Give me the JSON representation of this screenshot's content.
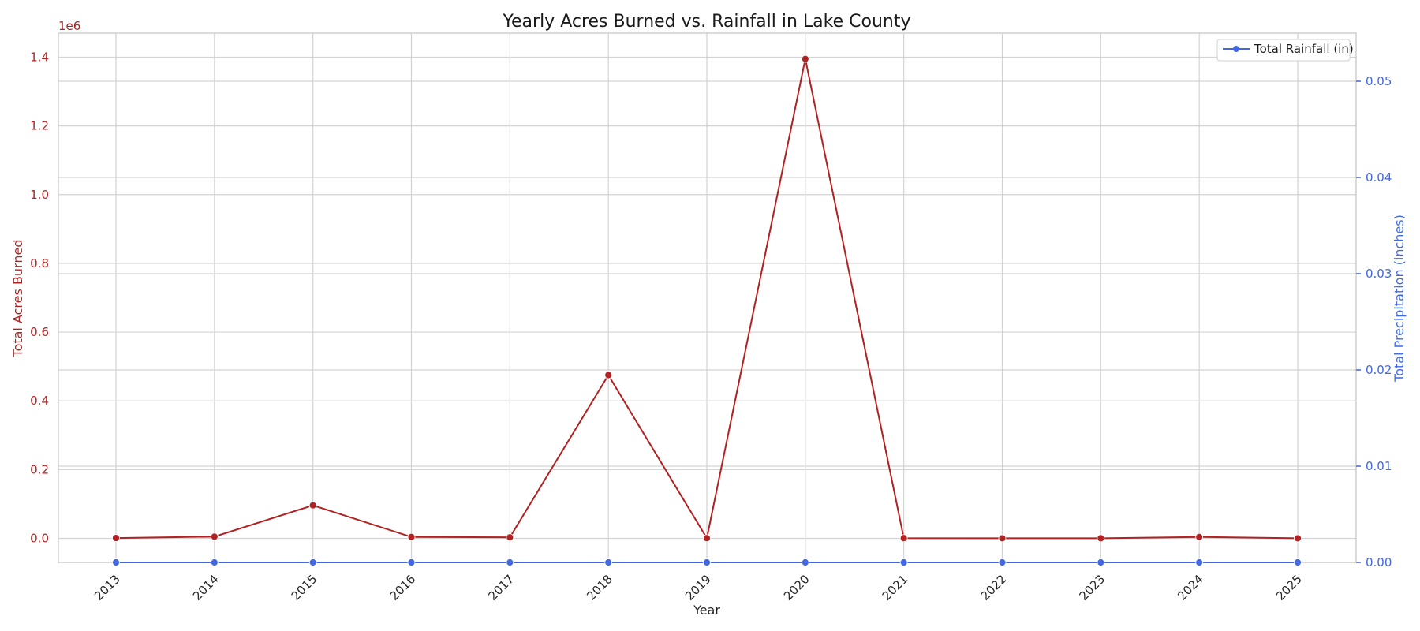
{
  "chart_data": {
    "type": "line",
    "title": "Yearly Acres Burned vs. Rainfall in Lake County",
    "xlabel": "Year",
    "ylabel_left": "Total Acres Burned",
    "ylabel_right": "Total Precipitation (inches)",
    "left_axis_offset_label": "1e6",
    "categories": [
      "2013",
      "2014",
      "2015",
      "2016",
      "2017",
      "2018",
      "2019",
      "2020",
      "2021",
      "2022",
      "2023",
      "2024",
      "2025"
    ],
    "ylim_left": [
      -70000,
      1470000
    ],
    "yticks_left": [
      0,
      200000,
      400000,
      600000,
      800000,
      1000000,
      1200000,
      1400000
    ],
    "yticklabels_left": [
      "0.0",
      "0.2",
      "0.4",
      "0.6",
      "0.8",
      "1.0",
      "1.2",
      "1.4"
    ],
    "ylim_right": [
      0,
      0.055
    ],
    "yticks_right": [
      0,
      0.01,
      0.02,
      0.03,
      0.04,
      0.05
    ],
    "yticklabels_right": [
      "0.00",
      "0.01",
      "0.02",
      "0.03",
      "0.04",
      "0.05"
    ],
    "grid": true,
    "legend_position": "top-right",
    "series": [
      {
        "name": "",
        "axis": "left",
        "color": "#b22222",
        "values": [
          1000,
          5000,
          96000,
          4000,
          3000,
          475000,
          500,
          1395000,
          500,
          200,
          300,
          4000,
          200
        ]
      },
      {
        "name": "Total Rainfall (in)",
        "axis": "right",
        "color": "#4169e1",
        "values": [
          0,
          0,
          0,
          0,
          0,
          0,
          0,
          0,
          0,
          0,
          0,
          0,
          0
        ]
      }
    ]
  }
}
